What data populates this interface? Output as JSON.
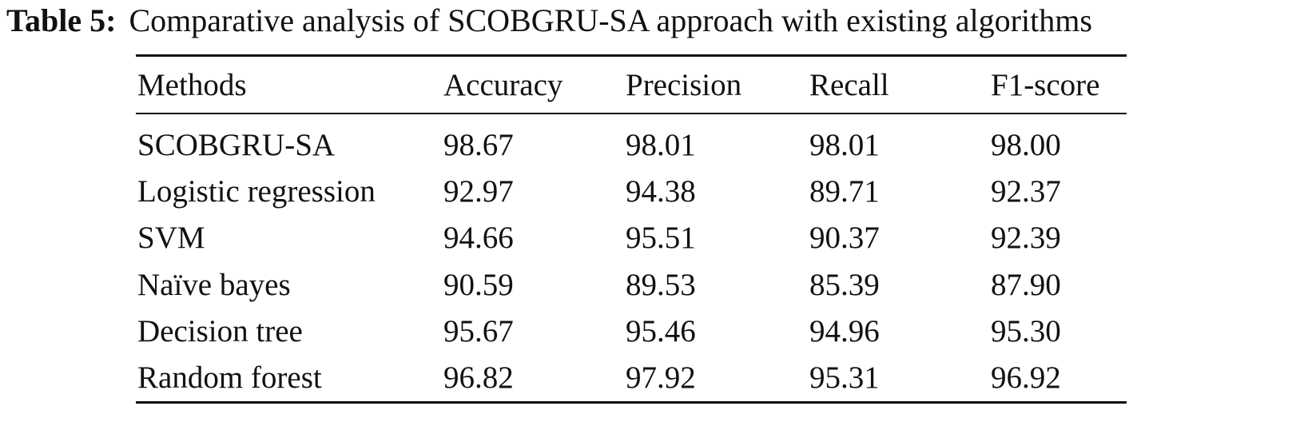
{
  "caption": {
    "label": "Table 5:",
    "text": "Comparative analysis of SCOBGRU-SA approach with existing algorithms"
  },
  "table": {
    "header": [
      "Methods",
      "Accuracy",
      "Precision",
      "Recall",
      "F1-score"
    ],
    "rows": [
      [
        "SCOBGRU-SA",
        "98.67",
        "98.01",
        "98.01",
        "98.00"
      ],
      [
        "Logistic regression",
        "92.97",
        "94.38",
        "89.71",
        "92.37"
      ],
      [
        "SVM",
        "94.66",
        "95.51",
        "90.37",
        "92.39"
      ],
      [
        "Naïve bayes",
        "90.59",
        "89.53",
        "85.39",
        "87.90"
      ],
      [
        "Decision tree",
        "95.67",
        "95.46",
        "94.96",
        "95.30"
      ],
      [
        "Random forest",
        "96.82",
        "97.92",
        "95.31",
        "96.92"
      ]
    ]
  }
}
